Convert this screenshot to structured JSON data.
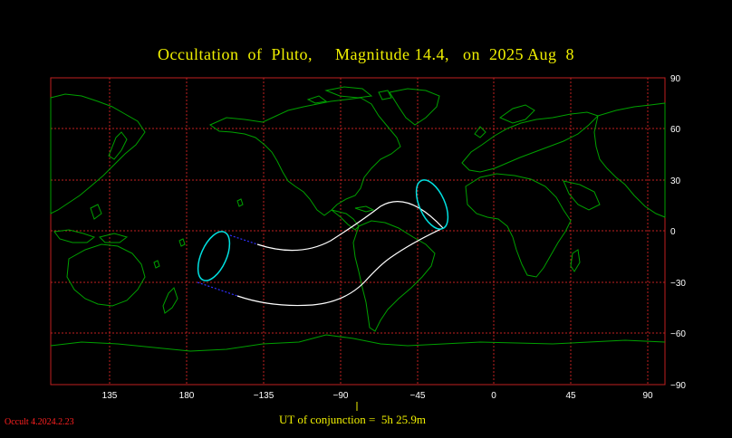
{
  "title": "Occultation  of  Pluto,     Magnitude 14.4,   on  2025 Aug  8",
  "x_tick_labels": [
    "135",
    "180",
    "−135",
    "−90",
    "−45",
    "0",
    "45",
    "90"
  ],
  "y_tick_labels": [
    "90",
    "60",
    "30",
    "0",
    "−30",
    "−60",
    "−90"
  ],
  "ut_conjunction": "UT of conjunction =  5h 25.9m",
  "version": "Occult 4.2024.2.23",
  "colors": {
    "background": "#000000",
    "title": "#f0f000",
    "grid": "#c02020",
    "coastline": "#00a000",
    "track": "#ffffff",
    "limb": "#00e0e0",
    "track_ends": "#3030ff",
    "version": "#ff2020"
  }
}
